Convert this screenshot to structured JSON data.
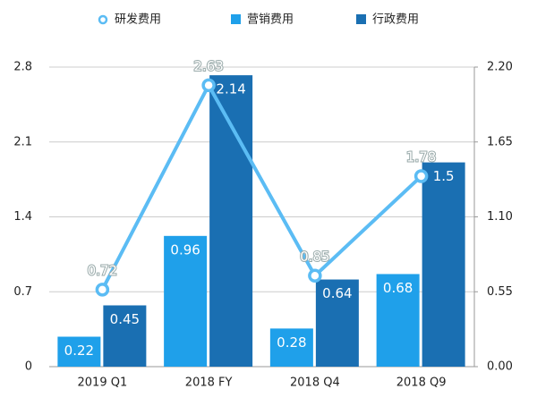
{
  "chart_data": {
    "type": "bar",
    "categories": [
      "2019 Q1",
      "2018 FY",
      "2018 Q4",
      "2018 Q9"
    ],
    "series": [
      {
        "name": "研发费用",
        "type": "line",
        "color": "#5bbcf4",
        "values": [
          0.72,
          2.63,
          0.85,
          1.78
        ]
      },
      {
        "name": "营销费用",
        "color": "#1fa0ea",
        "axis": "y2",
        "values": [
          0.22,
          0.96,
          0.28,
          0.68
        ]
      },
      {
        "name": "行政费用",
        "color": "#1a6fb2",
        "axis": "y2",
        "values": [
          0.45,
          2.14,
          0.64,
          1.5
        ]
      }
    ],
    "ylim": [
      0,
      2.8
    ],
    "yticks": [
      0,
      0.7,
      1.4,
      2.1,
      2.8
    ],
    "y2lim": [
      0,
      2.2
    ],
    "y2ticks": [
      {
        "value": 0,
        "label": "0.00"
      },
      0.55,
      {
        "value": 1.1,
        "label": "1.10"
      },
      1.65,
      {
        "value": 2.2,
        "label": "2.20"
      }
    ],
    "grid": true
  }
}
